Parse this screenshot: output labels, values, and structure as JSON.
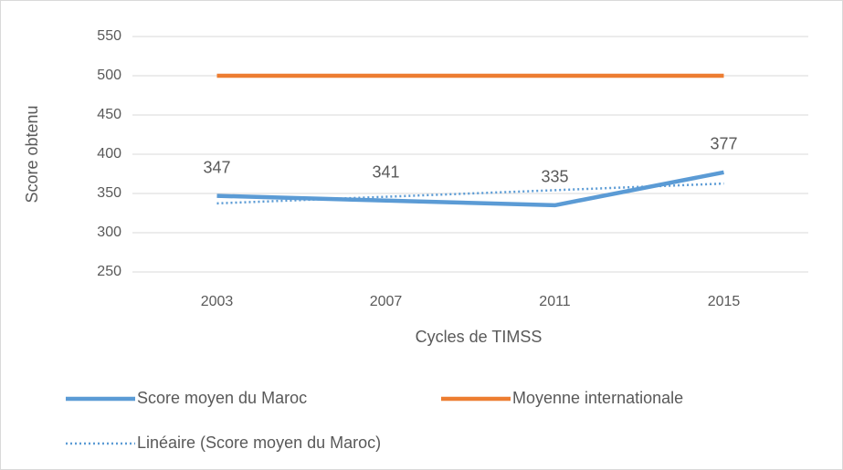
{
  "chart_data": {
    "type": "line",
    "x_label": "Cycles de TIMSS",
    "y_label": "Score obtenu",
    "categories": [
      "2003",
      "2007",
      "2011",
      "2015"
    ],
    "series": [
      {
        "name": "Score moyen du Maroc",
        "color": "#5b9bd5",
        "style": "solid",
        "data_labels": true,
        "values": [
          347,
          341,
          335,
          377
        ]
      },
      {
        "name": "Moyenne internationale",
        "color": "#ed7d31",
        "style": "solid",
        "data_labels": false,
        "values": [
          500,
          500,
          500,
          500
        ]
      },
      {
        "name": "Linéaire (Score moyen du Maroc)",
        "color": "#5b9bd5",
        "style": "dotted",
        "data_labels": false,
        "values": [
          337.4,
          345.8,
          354.2,
          362.6
        ]
      }
    ],
    "ylim": [
      250,
      550
    ],
    "yticks": [
      250,
      300,
      350,
      400,
      450,
      500,
      550
    ],
    "grid": true,
    "legend": "bottom"
  }
}
